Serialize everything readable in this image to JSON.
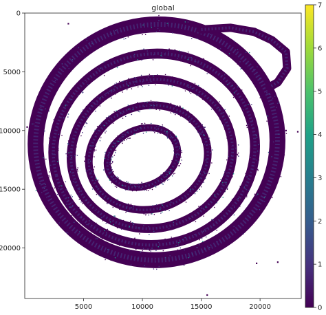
{
  "chart_data": {
    "type": "scatter",
    "title": "global",
    "xlabel": "",
    "ylabel": "",
    "xlim": [
      0,
      23500
    ],
    "ylim": [
      24300,
      0
    ],
    "x_ticks": [
      5000,
      10000,
      15000,
      20000
    ],
    "x_tick_labels": [
      "5000",
      "10000",
      "15000",
      "20000"
    ],
    "y_ticks": [
      0,
      5000,
      10000,
      15000,
      20000
    ],
    "y_tick_labels": [
      "0",
      "5000",
      "10000",
      "15000",
      "20000"
    ],
    "grid": false,
    "legend": "none",
    "colorbar": {
      "min": 0,
      "max": 7,
      "ticks": [
        0,
        1,
        2,
        3,
        4,
        5,
        6,
        7
      ],
      "tick_labels": [
        "0",
        "1",
        "2",
        "3",
        "4",
        "5",
        "6",
        "7"
      ],
      "colormap": "viridis",
      "colors": [
        "#440154",
        "#46327e",
        "#365c8d",
        "#277f8e",
        "#1fa187",
        "#4ac16d",
        "#a0da39",
        "#fde725"
      ]
    },
    "description_of_marks": "dense point cloud forming a spiral of tissue rings, predominantly value 0 (dark purple) with sparse higher values",
    "rings": [
      {
        "cx": 11200,
        "cy": 11000,
        "rx": 10300,
        "ry": 10000,
        "rotation": -15,
        "thickness": 1350
      },
      {
        "cx": 11000,
        "cy": 11600,
        "rx": 8600,
        "ry": 8100,
        "rotation": -15,
        "thickness": 850
      },
      {
        "cx": 10800,
        "cy": 12000,
        "rx": 6900,
        "ry": 6300,
        "rotation": -15,
        "thickness": 750
      },
      {
        "cx": 10500,
        "cy": 12300,
        "rx": 5100,
        "ry": 4400,
        "rotation": -15,
        "thickness": 650
      },
      {
        "cx": 10000,
        "cy": 12300,
        "rx": 3100,
        "ry": 2400,
        "rotation": -25,
        "thickness": 600
      }
    ],
    "tail": {
      "x": [
        15000,
        17500,
        19500,
        21000,
        22200,
        22300,
        21500,
        20800
      ],
      "y": [
        1400,
        1250,
        1600,
        2300,
        3300,
        4700,
        5900,
        6300
      ],
      "thickness": 700
    },
    "outliers": [
      {
        "x": 3700,
        "y": 900
      },
      {
        "x": 9000,
        "y": 1700
      },
      {
        "x": 17500,
        "y": 1400
      },
      {
        "x": 200,
        "y": 9700
      },
      {
        "x": 22200,
        "y": 10000
      },
      {
        "x": 21500,
        "y": 21200
      },
      {
        "x": 19700,
        "y": 21300
      },
      {
        "x": 15500,
        "y": 24000
      },
      {
        "x": 23200,
        "y": 10100
      }
    ]
  }
}
